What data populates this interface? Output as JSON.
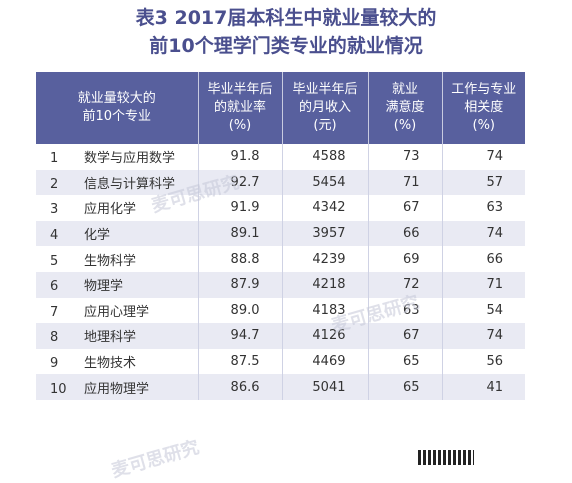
{
  "title": {
    "line1": "表3 2017届本科生中就业量较大的",
    "line2": "前10个理学门类专业的就业情况"
  },
  "watermarks": [
    "麦可思研究",
    "麦可思研究",
    "麦可思研究"
  ],
  "table": {
    "headers": [
      [
        "就业量较大的",
        "前10个专业"
      ],
      [
        "毕业半年后",
        "的就业率",
        "(%)"
      ],
      [
        "毕业半年后",
        "的月收入",
        "(元)"
      ],
      [
        "就业",
        "满意度",
        "(%)"
      ],
      [
        "工作与专业",
        "相关度",
        "(%)"
      ]
    ],
    "rows": [
      {
        "rank": "1",
        "major": "数学与应用数学",
        "employment": "91.8",
        "income": "4588",
        "satisfaction": "73",
        "relevance": "74"
      },
      {
        "rank": "2",
        "major": "信息与计算科学",
        "employment": "92.7",
        "income": "5454",
        "satisfaction": "71",
        "relevance": "57"
      },
      {
        "rank": "3",
        "major": "应用化学",
        "employment": "91.9",
        "income": "4342",
        "satisfaction": "67",
        "relevance": "63"
      },
      {
        "rank": "4",
        "major": "化学",
        "employment": "89.1",
        "income": "3957",
        "satisfaction": "66",
        "relevance": "74"
      },
      {
        "rank": "5",
        "major": "生物科学",
        "employment": "88.8",
        "income": "4239",
        "satisfaction": "69",
        "relevance": "66"
      },
      {
        "rank": "6",
        "major": "物理学",
        "employment": "87.9",
        "income": "4218",
        "satisfaction": "72",
        "relevance": "71"
      },
      {
        "rank": "7",
        "major": "应用心理学",
        "employment": "89.0",
        "income": "4183",
        "satisfaction": "63",
        "relevance": "54"
      },
      {
        "rank": "8",
        "major": "地理科学",
        "employment": "94.7",
        "income": "4126",
        "satisfaction": "67",
        "relevance": "74"
      },
      {
        "rank": "9",
        "major": "生物技术",
        "employment": "87.5",
        "income": "4469",
        "satisfaction": "65",
        "relevance": "56"
      },
      {
        "rank": "10",
        "major": "应用物理学",
        "employment": "86.6",
        "income": "5041",
        "satisfaction": "65",
        "relevance": "41"
      }
    ]
  },
  "colors": {
    "title": "#4a4f8e",
    "header_bg": "#58609e",
    "stripe": "#e9eaf3"
  }
}
